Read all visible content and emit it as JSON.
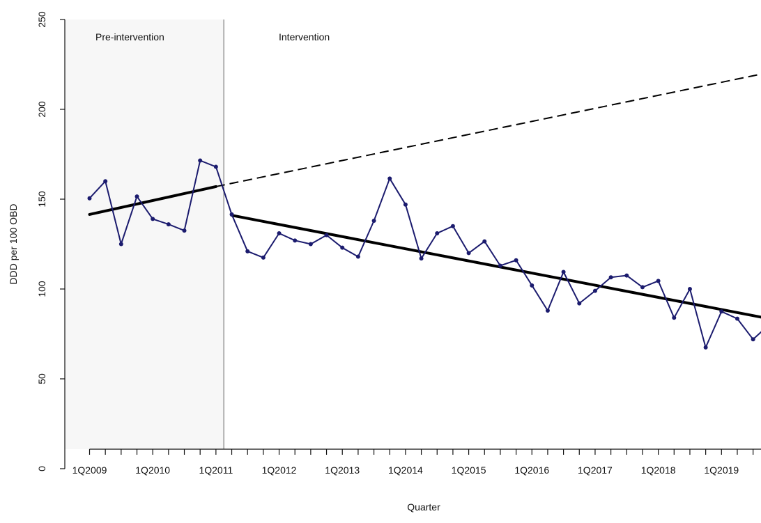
{
  "chart_data": {
    "type": "line",
    "xlabel": "Quarter",
    "ylabel": "DDD per 100 OBD",
    "ylim": [
      0,
      250
    ],
    "yticks": [
      0,
      50,
      100,
      150,
      200,
      250
    ],
    "x_tick_labels": [
      "1Q2009",
      "1Q2010",
      "1Q2011",
      "1Q2012",
      "1Q2013",
      "1Q2014",
      "1Q2015",
      "1Q2016",
      "1Q2017",
      "1Q2018",
      "1Q2019"
    ],
    "phases": [
      {
        "label": "Pre-intervention",
        "shaded": true
      },
      {
        "label": "Intervention",
        "shaded": false
      }
    ],
    "series": [
      {
        "values": [
          150.5,
          160,
          125,
          151.5,
          139,
          136,
          132.5,
          171.5,
          168,
          141.5,
          121,
          117.5,
          131,
          127,
          125,
          130,
          123,
          118,
          138,
          161.5,
          147,
          117,
          131,
          135,
          120,
          126.5,
          113,
          116,
          102,
          88,
          109.5,
          92,
          99,
          106.5,
          107.5,
          101,
          104.5,
          84,
          100,
          67.5,
          87.5,
          83.5,
          72,
          80
        ]
      }
    ],
    "trend_pre": {
      "x": [
        1,
        9
      ],
      "y": [
        141.5,
        157
      ]
    },
    "trend_counterfactual": {
      "x": [
        9,
        44
      ],
      "y": [
        157,
        220.5
      ]
    },
    "trend_post": {
      "x": [
        10,
        44
      ],
      "y": [
        141,
        83.5
      ]
    },
    "colors": {
      "series": "#1b1b6e",
      "trend": "#000000",
      "shade": "#f7f7f7",
      "divider": "#999999"
    }
  }
}
